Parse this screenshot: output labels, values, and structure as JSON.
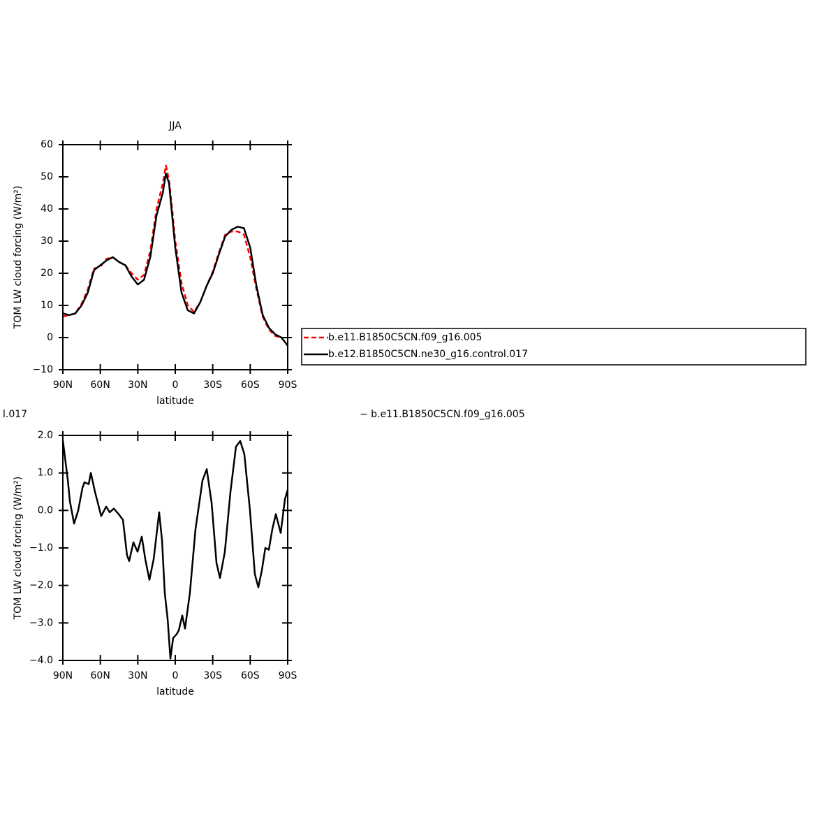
{
  "chart_data": [
    {
      "type": "line",
      "title": "JJA",
      "xlabel": "latitude",
      "ylabel": "TOM LW cloud forcing (W/m²)",
      "x": [
        90,
        85,
        80,
        75,
        70,
        65,
        60,
        55,
        50,
        45,
        40,
        35,
        30,
        25,
        20,
        15,
        10,
        7.5,
        5,
        2.5,
        0,
        -5,
        -10,
        -15,
        -20,
        -25,
        -30,
        -35,
        -40,
        -45,
        -50,
        -55,
        -60,
        -65,
        -70,
        -75,
        -80,
        -85,
        -90
      ],
      "series": [
        {
          "name": "b.e11.B1850C5CN.f09_g16.005",
          "color": "#ff0000",
          "dashed": true,
          "values": [
            6.5,
            7,
            7.5,
            10.5,
            15,
            21.5,
            22,
            24.5,
            25,
            23.5,
            22.5,
            20,
            18,
            19.5,
            27,
            40,
            48,
            53.5,
            49,
            40,
            30,
            17,
            10,
            8,
            11,
            16,
            20.5,
            26.5,
            32,
            33,
            33,
            32,
            25,
            15,
            6.5,
            2.5,
            0.5,
            0,
            -2.5
          ]
        },
        {
          "name": "b.e12.B1850C5CN.ne30_g16.control.017",
          "color": "#000000",
          "dashed": false,
          "values": [
            7.5,
            7,
            7.5,
            10,
            14,
            21,
            22.5,
            24,
            25,
            23.5,
            22.5,
            19,
            16.5,
            18,
            25,
            38,
            45,
            51,
            48,
            38,
            28,
            14,
            8.5,
            7.5,
            11,
            16,
            20,
            26,
            31.5,
            33.5,
            34.5,
            34,
            28,
            16,
            7,
            3,
            1,
            0,
            -2.5
          ]
        }
      ],
      "xlim": [
        90,
        -90
      ],
      "xticks": [
        {
          "value": 90,
          "label": "90N"
        },
        {
          "value": 60,
          "label": "60N"
        },
        {
          "value": 30,
          "label": "30N"
        },
        0,
        {
          "value": -30,
          "label": "30S"
        },
        {
          "value": -60,
          "label": "60S"
        },
        {
          "value": -90,
          "label": "90S"
        }
      ],
      "ylim": [
        -10,
        60
      ],
      "yticks": [
        {
          "value": -10,
          "label": "−10"
        },
        0,
        10,
        20,
        30,
        40,
        50,
        60
      ],
      "legend": "right"
    },
    {
      "type": "line",
      "subtitle_left": "l.017",
      "subtitle_right": "− b.e11.B1850C5CN.f09_g16.005",
      "xlabel": "latitude",
      "ylabel": "TOM LW cloud forcing (W/m²)",
      "x": [
        90,
        86,
        84.4,
        81,
        77.7,
        74.3,
        72.7,
        69.3,
        67.6,
        64.3,
        59.3,
        55.3,
        52.5,
        49.2,
        45.3,
        41.9,
        38.6,
        36.9,
        33.5,
        30.2,
        26.8,
        24,
        20.7,
        17.3,
        12.9,
        10.6,
        8.4,
        6.1,
        3.9,
        1.7,
        -1.1,
        -2.8,
        -5.6,
        -7.8,
        -11.7,
        -16.2,
        -21.8,
        -25.2,
        -29.1,
        -33,
        -35.8,
        -39.7,
        -44.2,
        -48.6,
        -52,
        -55.3,
        -59.8,
        -63.7,
        -66.5,
        -69.3,
        -72.1,
        -74.9,
        -77.7,
        -80.5,
        -84.4,
        -87.8,
        -90
      ],
      "color": "#000000",
      "values": [
        1.87,
        0.8,
        0.25,
        -0.35,
        0,
        0.6,
        0.75,
        0.7,
        1.0,
        0.5,
        -0.15,
        0.1,
        -0.05,
        0.05,
        -0.1,
        -0.25,
        -1.2,
        -1.35,
        -0.85,
        -1.1,
        -0.7,
        -1.3,
        -1.85,
        -1.3,
        -0.05,
        -0.8,
        -2.2,
        -2.9,
        -3.95,
        -3.4,
        -3.3,
        -3.2,
        -2.8,
        -3.15,
        -2.2,
        -0.5,
        0.8,
        1.1,
        0.2,
        -1.4,
        -1.8,
        -1.1,
        0.5,
        1.7,
        1.85,
        1.5,
        0,
        -1.7,
        -2.05,
        -1.6,
        -1.0,
        -1.05,
        -0.5,
        -0.1,
        -0.6,
        0.3,
        0.55
      ],
      "xlim": [
        90,
        -90
      ],
      "xticks": [
        {
          "value": 90,
          "label": "90N"
        },
        {
          "value": 60,
          "label": "60N"
        },
        {
          "value": 30,
          "label": "30N"
        },
        0,
        {
          "value": -30,
          "label": "30S"
        },
        {
          "value": -60,
          "label": "60S"
        },
        {
          "value": -90,
          "label": "90S"
        }
      ],
      "ylim": [
        -4,
        2
      ],
      "yticks": [
        {
          "value": -4,
          "label": "−4.0"
        },
        {
          "value": -3,
          "label": "−3.0"
        },
        {
          "value": -2,
          "label": "−2.0"
        },
        {
          "value": -1,
          "label": "−1.0"
        },
        {
          "value": 0,
          "label": "0.0"
        },
        {
          "value": 1,
          "label": "1.0"
        },
        {
          "value": 2,
          "label": "2.0"
        }
      ]
    }
  ]
}
